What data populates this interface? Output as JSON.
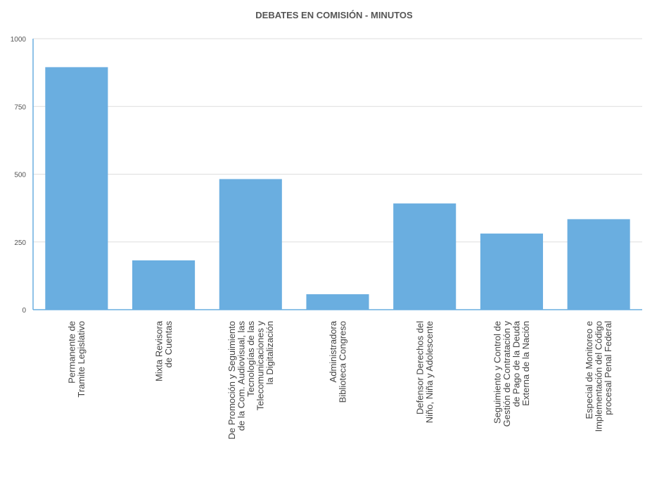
{
  "chart_data": {
    "type": "bar",
    "title": "DEBATES EN COMISIÓN - MINUTOS",
    "xlabel": "",
    "ylabel": "",
    "ylim": [
      0,
      1000
    ],
    "yticks": [
      "0",
      "250",
      "500",
      "750",
      "1000"
    ],
    "grid": true,
    "legend": "none",
    "bar_color": "#6aaee0",
    "categories": [
      [
        "Permanente de",
        "Tramite Legislativo"
      ],
      [
        "Mixta Revisora",
        "de Cuentas"
      ],
      [
        "De Promoción y Seguimiento",
        "de la Com. Audiovisual, las",
        "Tecnologías de las",
        "Telecomunicaciones y",
        "la Digitalización"
      ],
      [
        "Administradora",
        "Biblioteca Congreso"
      ],
      [
        "Defensor Derechos del",
        "Niño, Niña y Adolescente"
      ],
      [
        "Seguimiento y Control de",
        "Gestión de Contratación y",
        "de Pago de la Deuda",
        "Externa de la Nación"
      ],
      [
        "Especial de Monitoreo e",
        "Implementación del Código",
        "procesal Penal Federal"
      ]
    ],
    "values": [
      895,
      182,
      482,
      57,
      392,
      281,
      334
    ]
  }
}
